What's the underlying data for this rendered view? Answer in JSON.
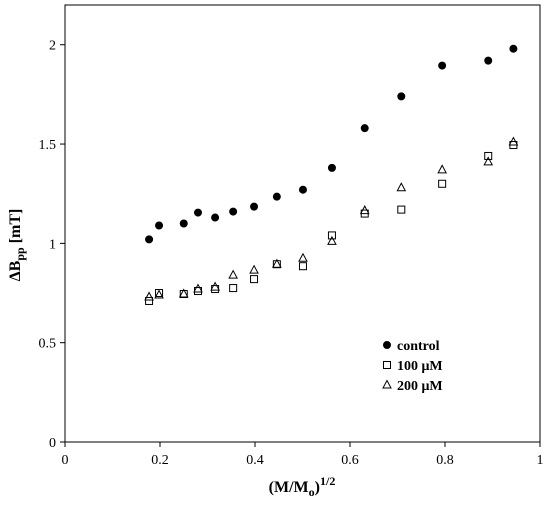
{
  "chart_data": {
    "type": "scatter",
    "title": "",
    "xlabel": "(M/M",
    "xlabel_sub": "o",
    "xlabel_suffix": ")",
    "xlabel_sup": "1/2",
    "ylabel": "ΔB",
    "ylabel_sub": "pp",
    "ylabel_suffix": " [mT]",
    "xlim": [
      0,
      1
    ],
    "ylim": [
      0,
      2.2
    ],
    "x_ticks": [
      0,
      0.2,
      0.4,
      0.6,
      0.8,
      1
    ],
    "x_tick_labels": [
      "0",
      "0.2",
      "0.4",
      "0.6",
      "0.8",
      "1"
    ],
    "y_ticks": [
      0,
      0.5,
      1,
      1.5,
      2
    ],
    "y_tick_labels": [
      "0",
      "0.5",
      "1",
      "1.5",
      "2"
    ],
    "grid": false,
    "legend_position": "lower-right",
    "series": [
      {
        "name": "control",
        "marker": "filled-circle",
        "color": "#000000",
        "x": [
          0.177,
          0.198,
          0.25,
          0.28,
          0.316,
          0.354,
          0.398,
          0.446,
          0.501,
          0.562,
          0.631,
          0.708,
          0.794,
          0.891,
          0.944
        ],
        "y": [
          1.02,
          1.09,
          1.1,
          1.155,
          1.13,
          1.16,
          1.185,
          1.235,
          1.27,
          1.38,
          1.58,
          1.74,
          1.895,
          1.92,
          1.98
        ]
      },
      {
        "name": "100 μM",
        "marker": "open-square",
        "color": "#000000",
        "x": [
          0.177,
          0.198,
          0.25,
          0.28,
          0.316,
          0.354,
          0.398,
          0.446,
          0.501,
          0.562,
          0.631,
          0.708,
          0.794,
          0.891,
          0.944
        ],
        "y": [
          0.71,
          0.75,
          0.745,
          0.76,
          0.77,
          0.775,
          0.82,
          0.895,
          0.885,
          1.04,
          1.15,
          1.17,
          1.3,
          1.44,
          1.495
        ]
      },
      {
        "name": "200 μM",
        "marker": "open-triangle",
        "color": "#000000",
        "x": [
          0.177,
          0.198,
          0.25,
          0.28,
          0.316,
          0.354,
          0.398,
          0.446,
          0.501,
          0.562,
          0.631,
          0.708,
          0.794,
          0.891,
          0.944
        ],
        "y": [
          0.73,
          0.74,
          0.745,
          0.77,
          0.78,
          0.84,
          0.865,
          0.895,
          0.925,
          1.01,
          1.165,
          1.28,
          1.37,
          1.41,
          1.51
        ]
      }
    ]
  }
}
